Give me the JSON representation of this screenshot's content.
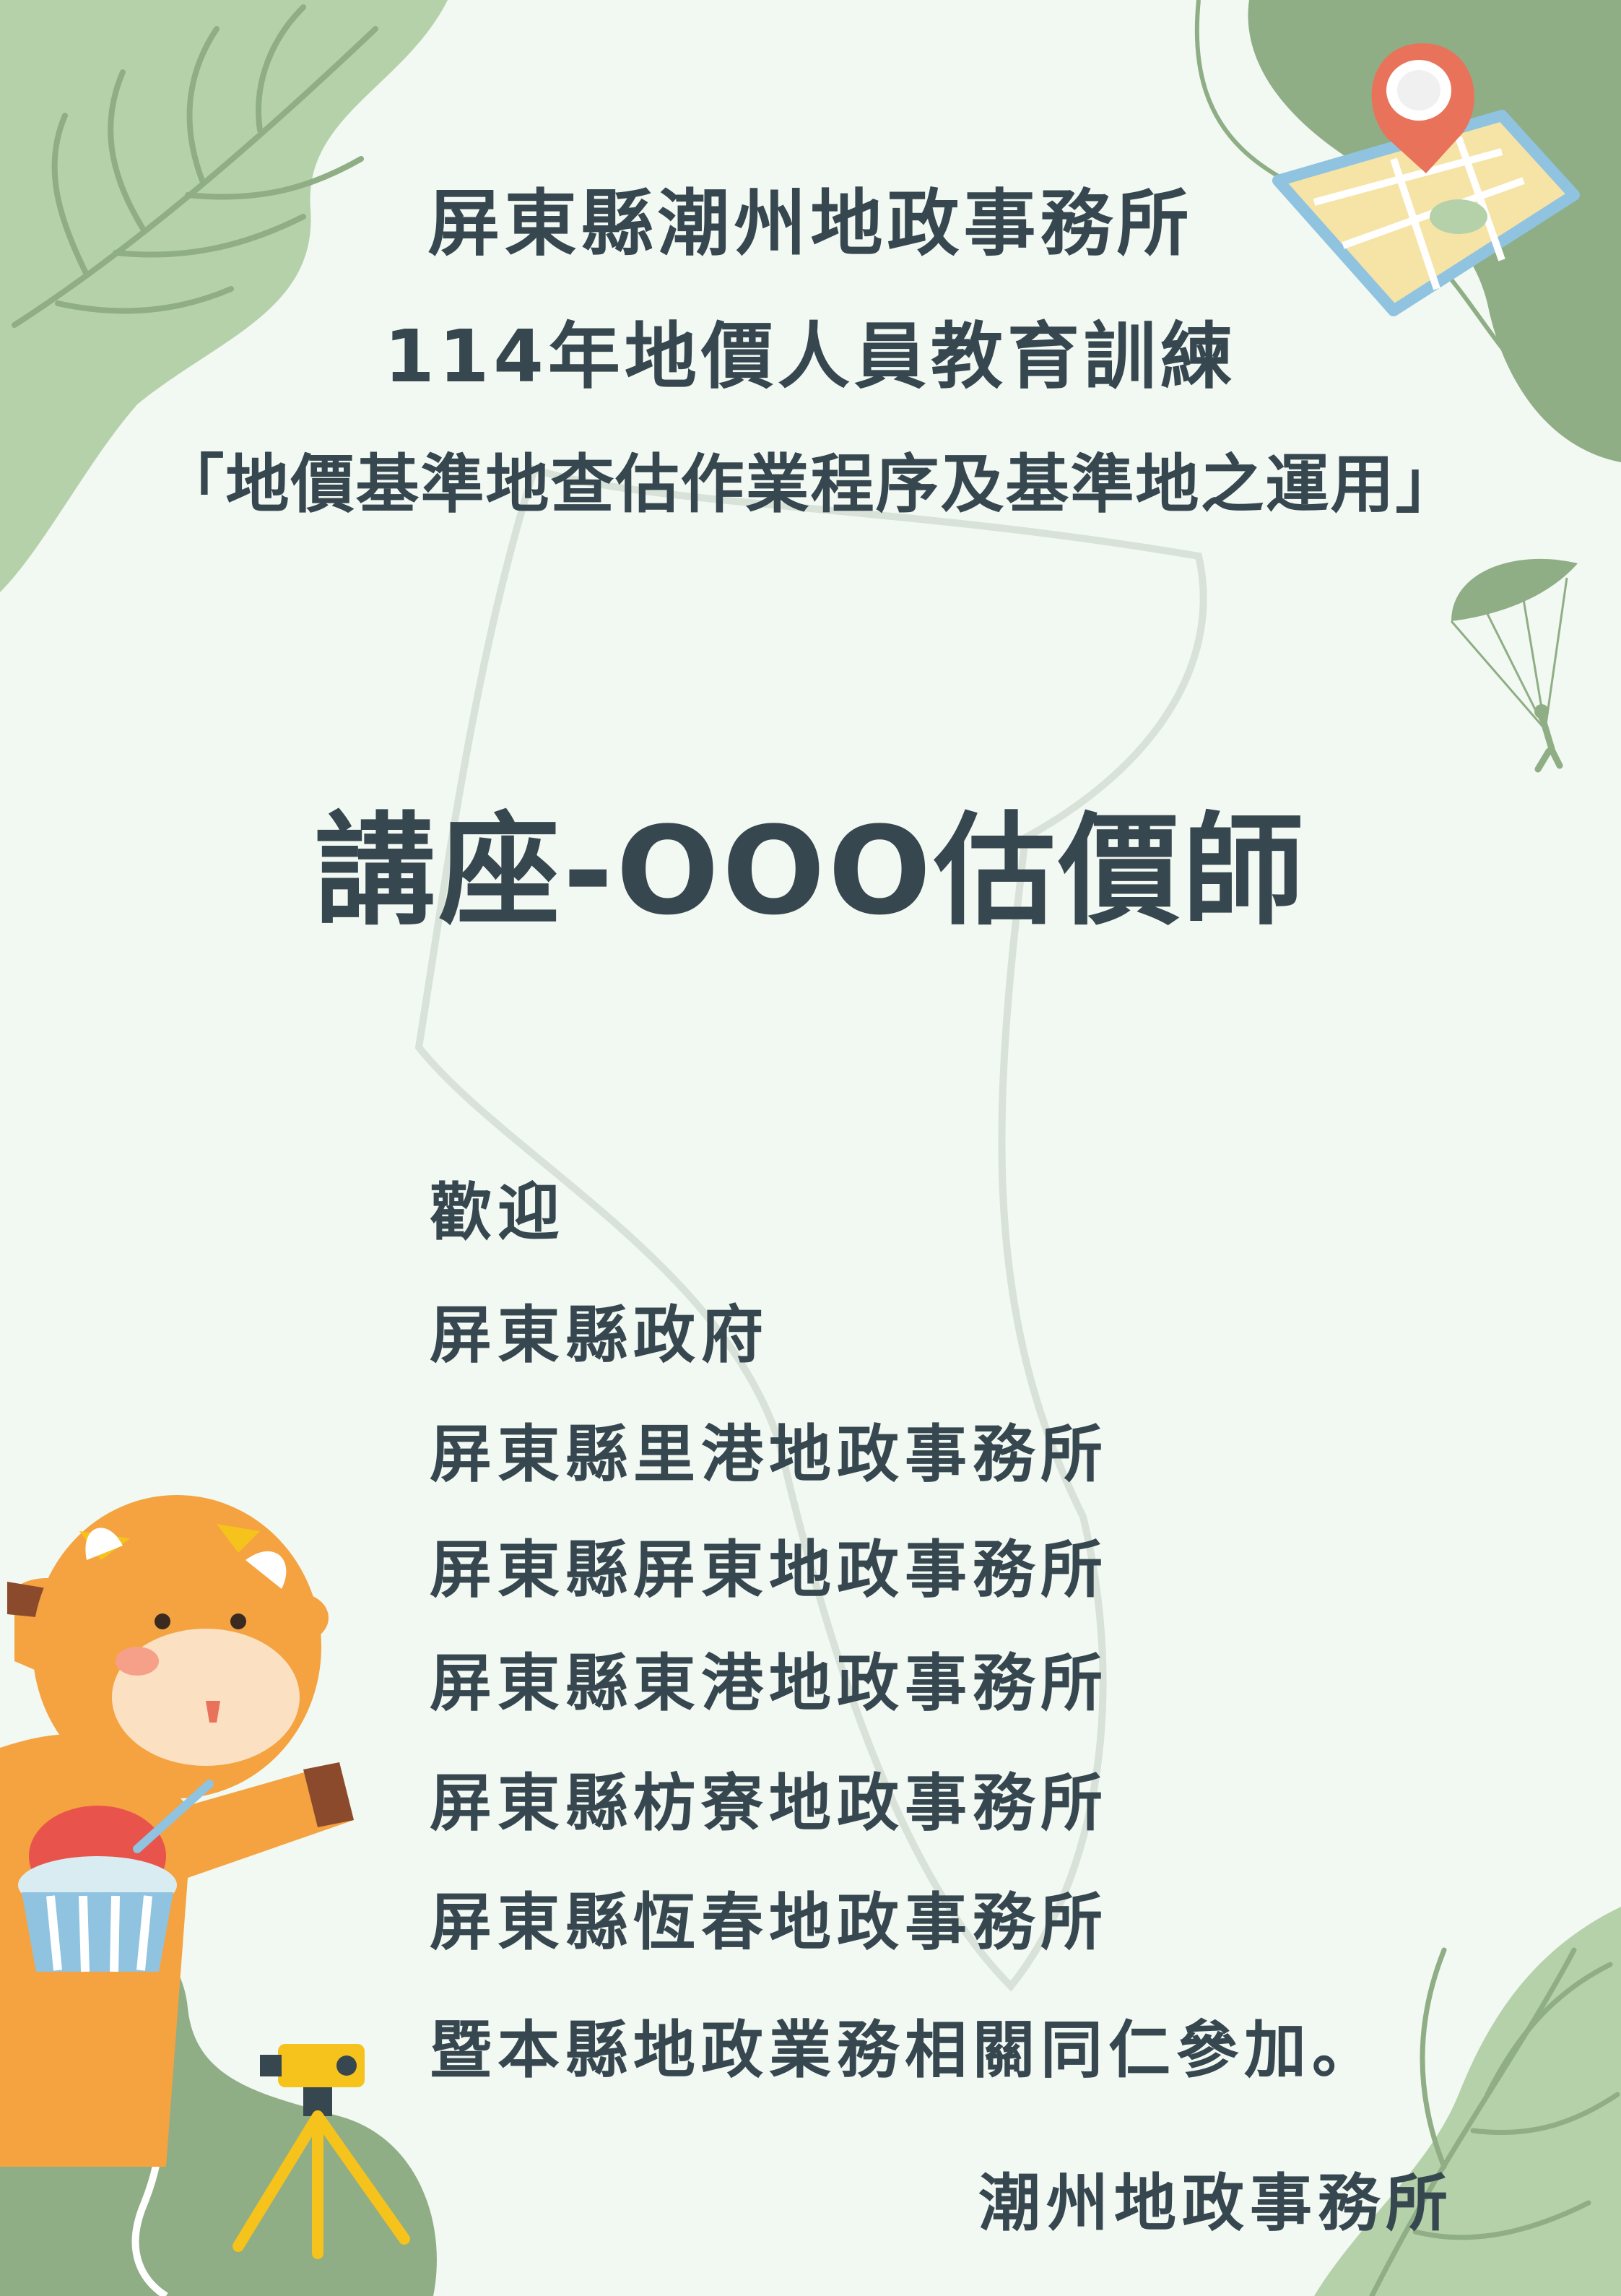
{
  "header": {
    "title_line1": "屏東縣潮州地政事務所",
    "title_line2": "114年地價人員教育訓練",
    "title_line3": "「地價基準地查估作業程序及基準地之運用」"
  },
  "lecture": {
    "label": "講座-OOO估價師"
  },
  "invitation": {
    "greeting": "歡迎",
    "invitees": [
      "屏東縣政府",
      "屏東縣里港地政事務所",
      "屏東縣屏東地政事務所",
      "屏東縣東港地政事務所",
      "屏東縣枋寮地政事務所",
      "屏東縣恆春地政事務所"
    ],
    "closing": "暨本縣地政業務相關同仁參加。"
  },
  "signature": "潮州地政事務所",
  "colors": {
    "background": "#f2f8f2",
    "text": "#37474f",
    "leaf_light": "#b5d1a9",
    "leaf_dark": "#8fae85",
    "accent_orange": "#f4a340",
    "accent_yellow": "#f6c21c"
  }
}
